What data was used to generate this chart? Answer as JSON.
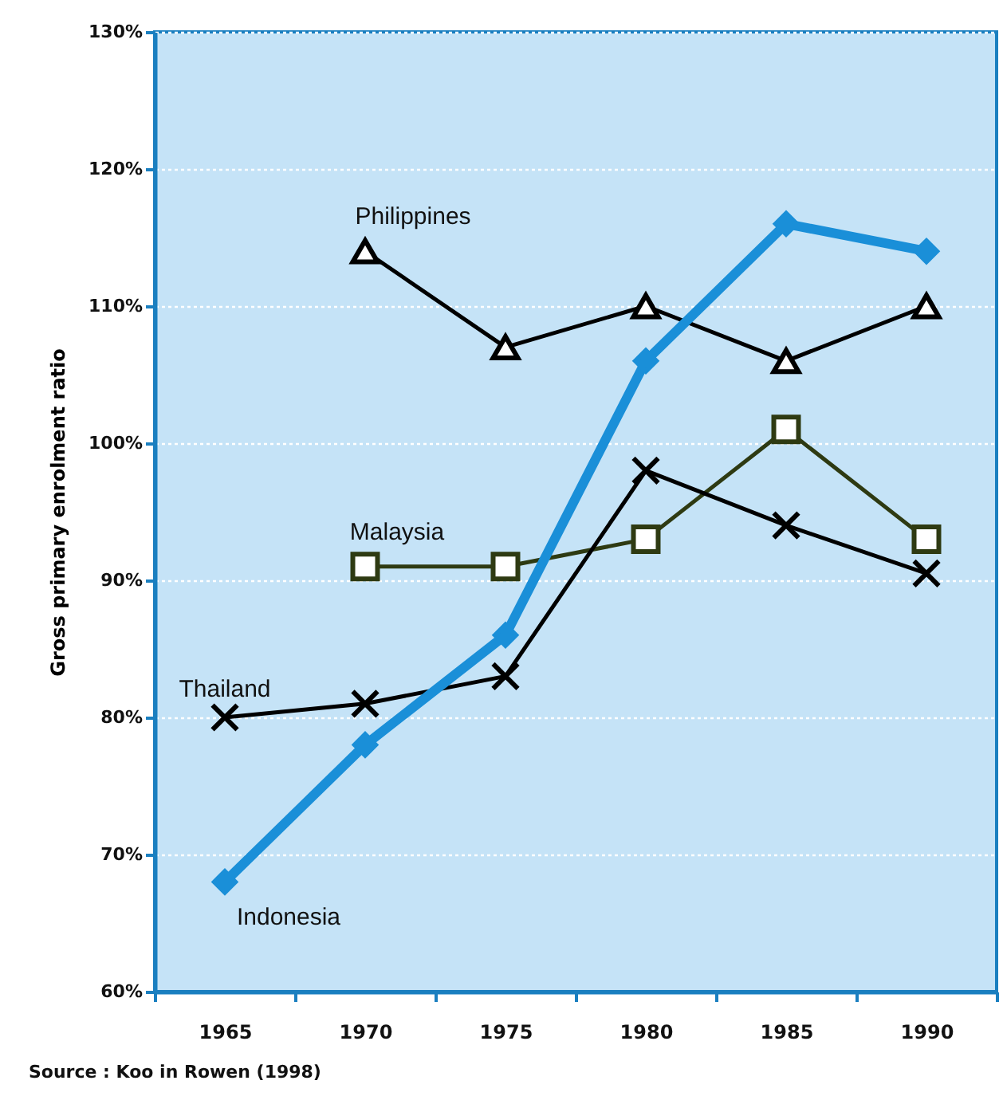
{
  "chart_data": {
    "type": "line",
    "ylabel": "Gross primary enrolment ratio",
    "categories": [
      "1965",
      "1970",
      "1975",
      "1980",
      "1985",
      "1990"
    ],
    "ylim": [
      60,
      130
    ],
    "yticks": [
      {
        "value": 60,
        "label": "60%"
      },
      {
        "value": 70,
        "label": "70%"
      },
      {
        "value": 80,
        "label": "80%"
      },
      {
        "value": 90,
        "label": "90%"
      },
      {
        "value": 100,
        "label": "100%"
      },
      {
        "value": 110,
        "label": "110%"
      },
      {
        "value": 120,
        "label": "120%"
      },
      {
        "value": 130,
        "label": "130%"
      }
    ],
    "grid": "y",
    "line_style": "solid",
    "series": [
      {
        "name": "Philippines",
        "color": "#000000",
        "marker": "triangle",
        "values": [
          null,
          114,
          107,
          110,
          106,
          110
        ]
      },
      {
        "name": "Malaysia",
        "color": "#2e3a12",
        "marker": "square",
        "values": [
          null,
          91,
          91,
          93,
          101,
          93
        ]
      },
      {
        "name": "Thailand",
        "color": "#000000",
        "marker": "cross",
        "values": [
          80,
          81,
          83,
          98,
          94,
          90.5
        ]
      },
      {
        "name": "Indonesia",
        "color": "#1a8fd8",
        "marker": "diamond",
        "values": [
          68,
          78,
          86,
          106,
          116,
          114
        ]
      }
    ],
    "annotations": [
      "Source : Koo in Rowen (1998)"
    ]
  }
}
